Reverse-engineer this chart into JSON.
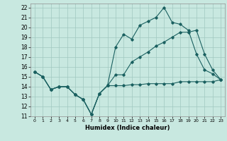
{
  "title": "",
  "xlabel": "Humidex (Indice chaleur)",
  "bg_color": "#c8e8e0",
  "grid_color": "#a0c8c0",
  "line_color": "#1a6060",
  "xlim": [
    -0.5,
    23.5
  ],
  "ylim": [
    11,
    22.4
  ],
  "xticks": [
    0,
    1,
    2,
    3,
    4,
    5,
    6,
    7,
    8,
    9,
    10,
    11,
    12,
    13,
    14,
    15,
    16,
    17,
    18,
    19,
    20,
    21,
    22,
    23
  ],
  "yticks": [
    11,
    12,
    13,
    14,
    15,
    16,
    17,
    18,
    19,
    20,
    21,
    22
  ],
  "line1_x": [
    0,
    1,
    2,
    3,
    4,
    5,
    6,
    7,
    8,
    9,
    10,
    11,
    12,
    13,
    14,
    15,
    16,
    17,
    18,
    19,
    20,
    21,
    22,
    23
  ],
  "line1_y": [
    15.5,
    15.0,
    13.7,
    14.0,
    14.0,
    13.2,
    12.7,
    11.2,
    13.3,
    14.1,
    14.1,
    14.1,
    14.2,
    14.2,
    14.3,
    14.3,
    14.3,
    14.3,
    14.5,
    14.5,
    14.5,
    14.5,
    14.5,
    14.7
  ],
  "line2_x": [
    0,
    1,
    2,
    3,
    4,
    5,
    6,
    7,
    8,
    9,
    10,
    11,
    12,
    13,
    14,
    15,
    16,
    17,
    18,
    19,
    20,
    21,
    22,
    23
  ],
  "line2_y": [
    15.5,
    15.0,
    13.7,
    14.0,
    14.0,
    13.2,
    12.7,
    11.2,
    13.3,
    14.1,
    18.0,
    19.3,
    18.8,
    20.2,
    20.6,
    21.0,
    22.0,
    20.5,
    20.3,
    19.7,
    17.3,
    15.7,
    15.3,
    14.7
  ],
  "line3_x": [
    0,
    1,
    2,
    3,
    4,
    5,
    6,
    7,
    8,
    9,
    10,
    11,
    12,
    13,
    14,
    15,
    16,
    17,
    18,
    19,
    20,
    21,
    22,
    23
  ],
  "line3_y": [
    15.5,
    15.0,
    13.7,
    14.0,
    14.0,
    13.2,
    12.7,
    11.2,
    13.3,
    14.1,
    15.2,
    15.2,
    16.5,
    17.0,
    17.5,
    18.1,
    18.5,
    19.0,
    19.5,
    19.5,
    19.7,
    17.3,
    15.7,
    14.7
  ]
}
